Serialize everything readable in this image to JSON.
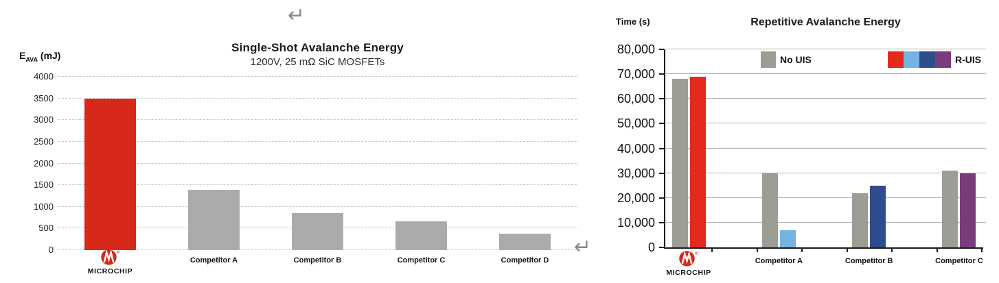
{
  "page": {
    "background": "#ffffff",
    "return_mark": "↵"
  },
  "logo": {
    "brand": "Microchip",
    "wordmark": "MICROCHIP",
    "color": "#D7281A"
  },
  "chart_data": [
    {
      "type": "bar",
      "title": "Single-Shot Avalanche Energy",
      "subtitle": "1200V, 25 mΩ SiC MOSFETs",
      "ylabel": {
        "symbol": "E",
        "subscript": "AVA",
        "unit": "(mJ)"
      },
      "ylim": [
        0,
        4000
      ],
      "ytick_step": 500,
      "ytick_labels": [
        "0",
        "500",
        "1000",
        "1500",
        "2000",
        "2500",
        "3000",
        "3500",
        "4000"
      ],
      "grid": "dashed-horizontal",
      "legend_position": "none",
      "categories": [
        "Microchip",
        "Competitor A",
        "Competitor B",
        "Competitor C",
        "Competitor D"
      ],
      "values": [
        3500,
        1390,
        860,
        660,
        380
      ],
      "bar_colors": [
        "#D7281A",
        "#ABABAB",
        "#ABABAB",
        "#ABABAB",
        "#ABABAB"
      ],
      "first_category_is_logo": true
    },
    {
      "type": "bar",
      "title": "Repetitive Avalanche Energy",
      "ylabel": "Time (s)",
      "ylim": [
        0,
        80000
      ],
      "ytick_step": 10000,
      "ytick_labels": [
        "0",
        "10,000",
        "20,000",
        "30,000",
        "40,000",
        "50,000",
        "60,000",
        "70,000",
        "80,000"
      ],
      "grid": "solid-horizontal",
      "legend_position": "top-inside",
      "categories": [
        "Microchip",
        "Competitor A",
        "Competitor B",
        "Competitor C"
      ],
      "series": [
        {
          "name": "No UIS",
          "color": "#9B9E94",
          "values": [
            68000,
            30000,
            22000,
            31000
          ]
        },
        {
          "name": "R-UIS",
          "colors": [
            "#E5291C",
            "#74B4E3",
            "#2E4D8D",
            "#7B3C7E"
          ],
          "values": [
            69000,
            7000,
            25000,
            30000
          ]
        }
      ],
      "legend": {
        "no_uis_label": "No UIS",
        "no_uis_color": "#9B9E94",
        "r_uis_label": "R-UIS",
        "r_uis_colors": [
          "#E5291C",
          "#74B4E3",
          "#2E4D8D",
          "#7B3C7E"
        ]
      },
      "first_category_is_logo": true
    }
  ]
}
